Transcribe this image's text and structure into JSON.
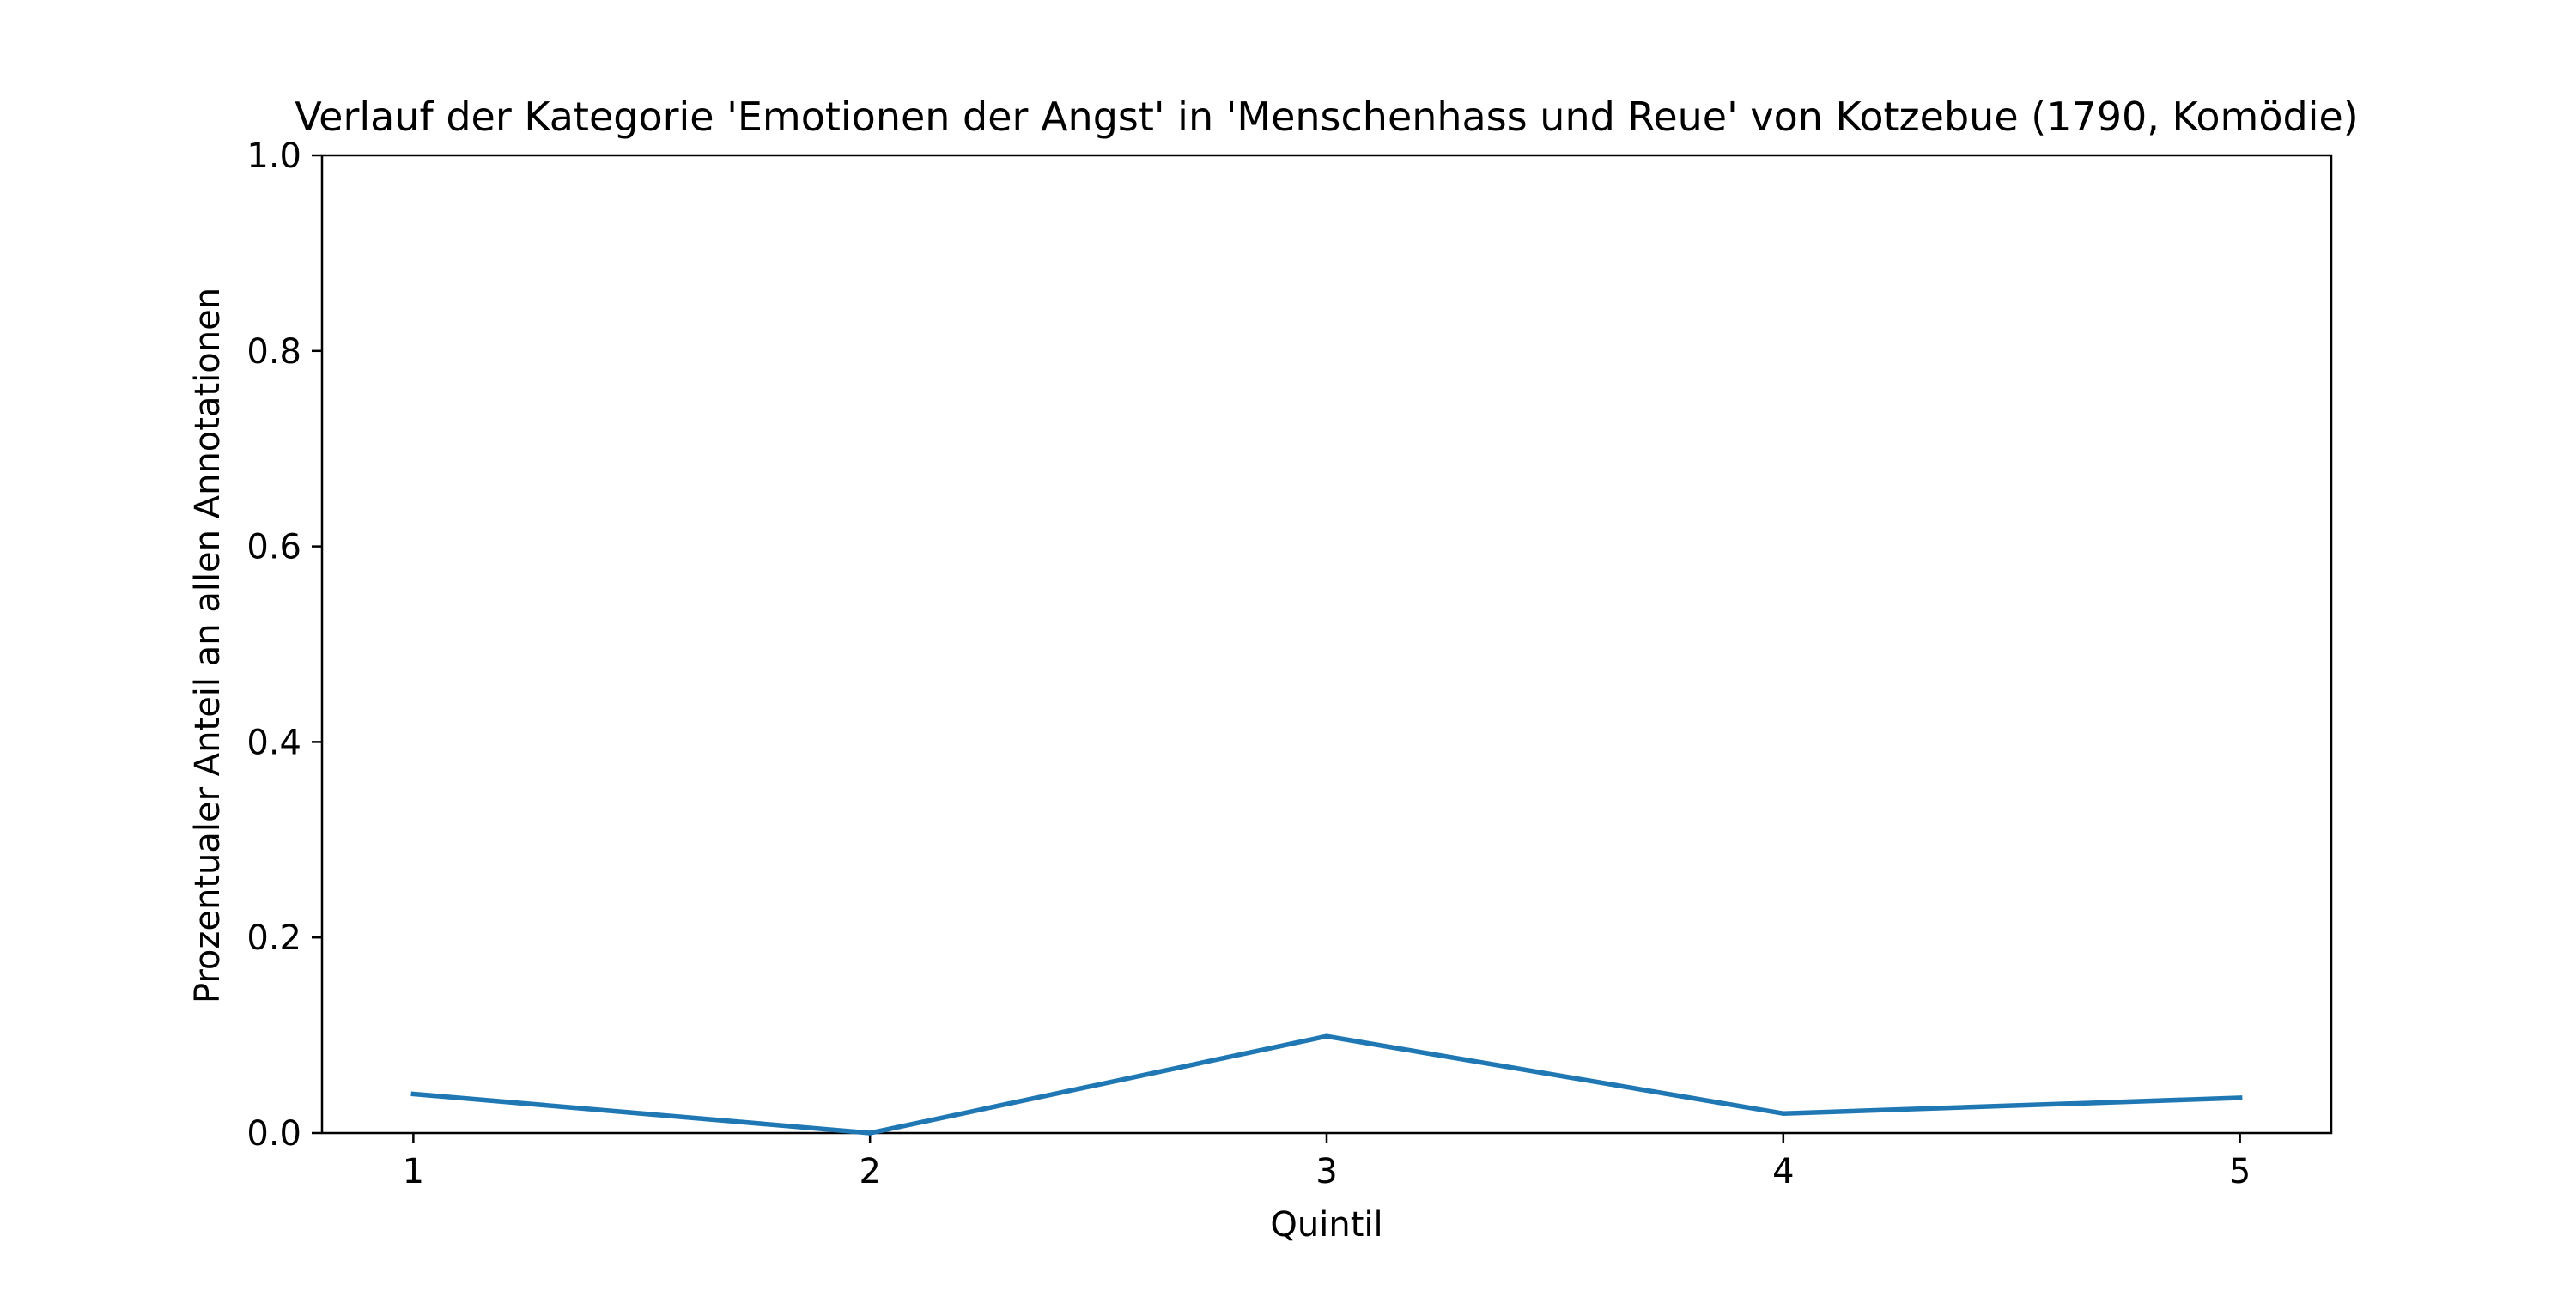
{
  "chart_data": {
    "type": "line",
    "title": "Verlauf der Kategorie 'Emotionen der Angst' in 'Menschenhass und Reue' von Kotzebue (1790, Komödie)",
    "xlabel": "Quintil",
    "ylabel": "Prozentualer Anteil an allen Annotationen",
    "x": [
      1,
      2,
      3,
      4,
      5
    ],
    "series": [
      {
        "values": [
          0.04,
          0.0,
          0.099,
          0.02,
          0.036
        ]
      }
    ],
    "xlim": [
      0.8,
      5.2
    ],
    "ylim": [
      0.0,
      1.0
    ],
    "xticks": [
      "1",
      "2",
      "3",
      "4",
      "5"
    ],
    "yticks": [
      "0.0",
      "0.2",
      "0.4",
      "0.6",
      "0.8",
      "1.0"
    ],
    "grid": false,
    "line_color": "#1f77b4"
  }
}
